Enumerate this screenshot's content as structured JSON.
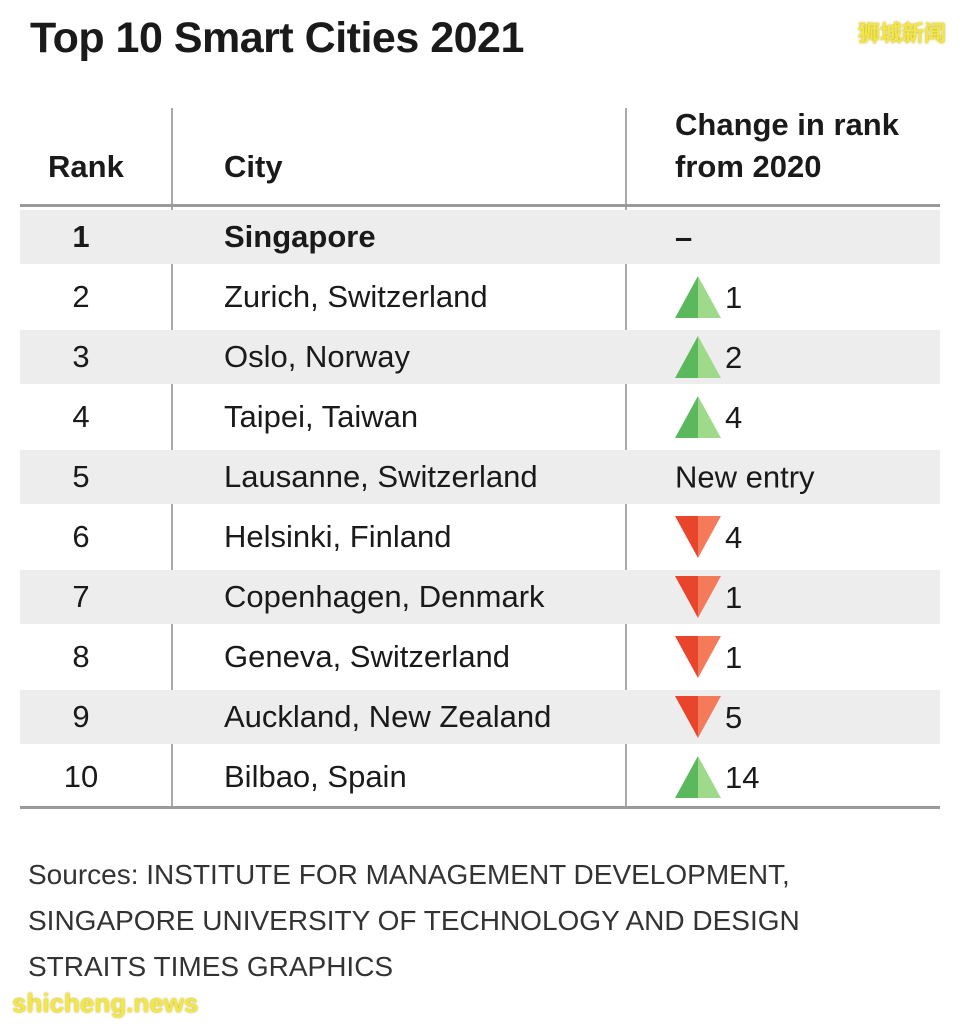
{
  "title": "Top 10 Smart Cities 2021",
  "watermarks": {
    "top": "狮城新闻",
    "bottom": "shicheng.news"
  },
  "colors": {
    "up": "#5cb85c",
    "up_light": "#9fd98a",
    "down": "#e8452c",
    "down_light": "#f47a5a",
    "shade": "#ededed"
  },
  "table": {
    "headers": {
      "rank": "Rank",
      "city": "City",
      "change_line1": "Change in rank",
      "change_line2": "from 2020"
    },
    "rows": [
      {
        "rank": "1",
        "city": "Singapore",
        "direction": "none",
        "change": "–"
      },
      {
        "rank": "2",
        "city": "Zurich, Switzerland",
        "direction": "up",
        "change": "1"
      },
      {
        "rank": "3",
        "city": "Oslo, Norway",
        "direction": "up",
        "change": "2"
      },
      {
        "rank": "4",
        "city": "Taipei, Taiwan",
        "direction": "up",
        "change": "4"
      },
      {
        "rank": "5",
        "city": "Lausanne, Switzerland",
        "direction": "none",
        "change": "New entry"
      },
      {
        "rank": "6",
        "city": "Helsinki, Finland",
        "direction": "down",
        "change": "4"
      },
      {
        "rank": "7",
        "city": "Copenhagen, Denmark",
        "direction": "down",
        "change": "1"
      },
      {
        "rank": "8",
        "city": "Geneva, Switzerland",
        "direction": "down",
        "change": "1"
      },
      {
        "rank": "9",
        "city": "Auckland, New Zealand",
        "direction": "down",
        "change": "5"
      },
      {
        "rank": "10",
        "city": "Bilbao, Spain",
        "direction": "up",
        "change": "14"
      }
    ]
  },
  "sources": [
    "Sources: INSTITUTE FOR MANAGEMENT DEVELOPMENT,",
    "SINGAPORE UNIVERSITY OF TECHNOLOGY AND DESIGN",
    "STRAITS TIMES GRAPHICS"
  ]
}
